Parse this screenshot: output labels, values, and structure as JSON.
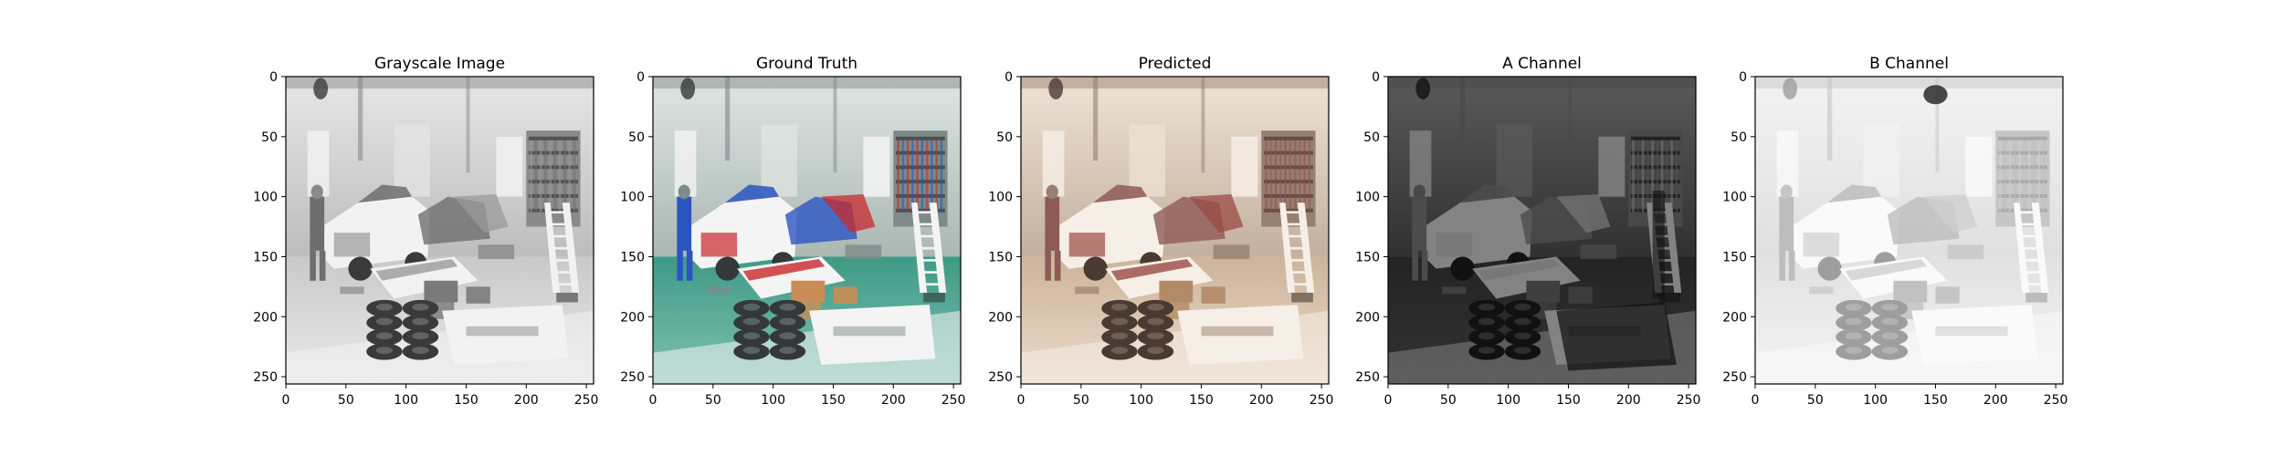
{
  "figure": {
    "panels": [
      {
        "title": "Grayscale Image",
        "kind": "gray"
      },
      {
        "title": "Ground Truth",
        "kind": "color"
      },
      {
        "title": "Predicted",
        "kind": "sepia"
      },
      {
        "title": "A Channel",
        "kind": "a-channel"
      },
      {
        "title": "B Channel",
        "kind": "b-channel"
      }
    ],
    "axes": {
      "x_ticks": [
        "0",
        "50",
        "100",
        "150",
        "200",
        "250"
      ],
      "y_ticks": [
        "0",
        "50",
        "100",
        "150",
        "200",
        "250"
      ],
      "x_tick_values": [
        0,
        50,
        100,
        150,
        200,
        250
      ],
      "y_tick_values": [
        0,
        50,
        100,
        150,
        200,
        250
      ],
      "xlim": [
        0,
        256
      ],
      "ylim": [
        256,
        0
      ]
    }
  }
}
